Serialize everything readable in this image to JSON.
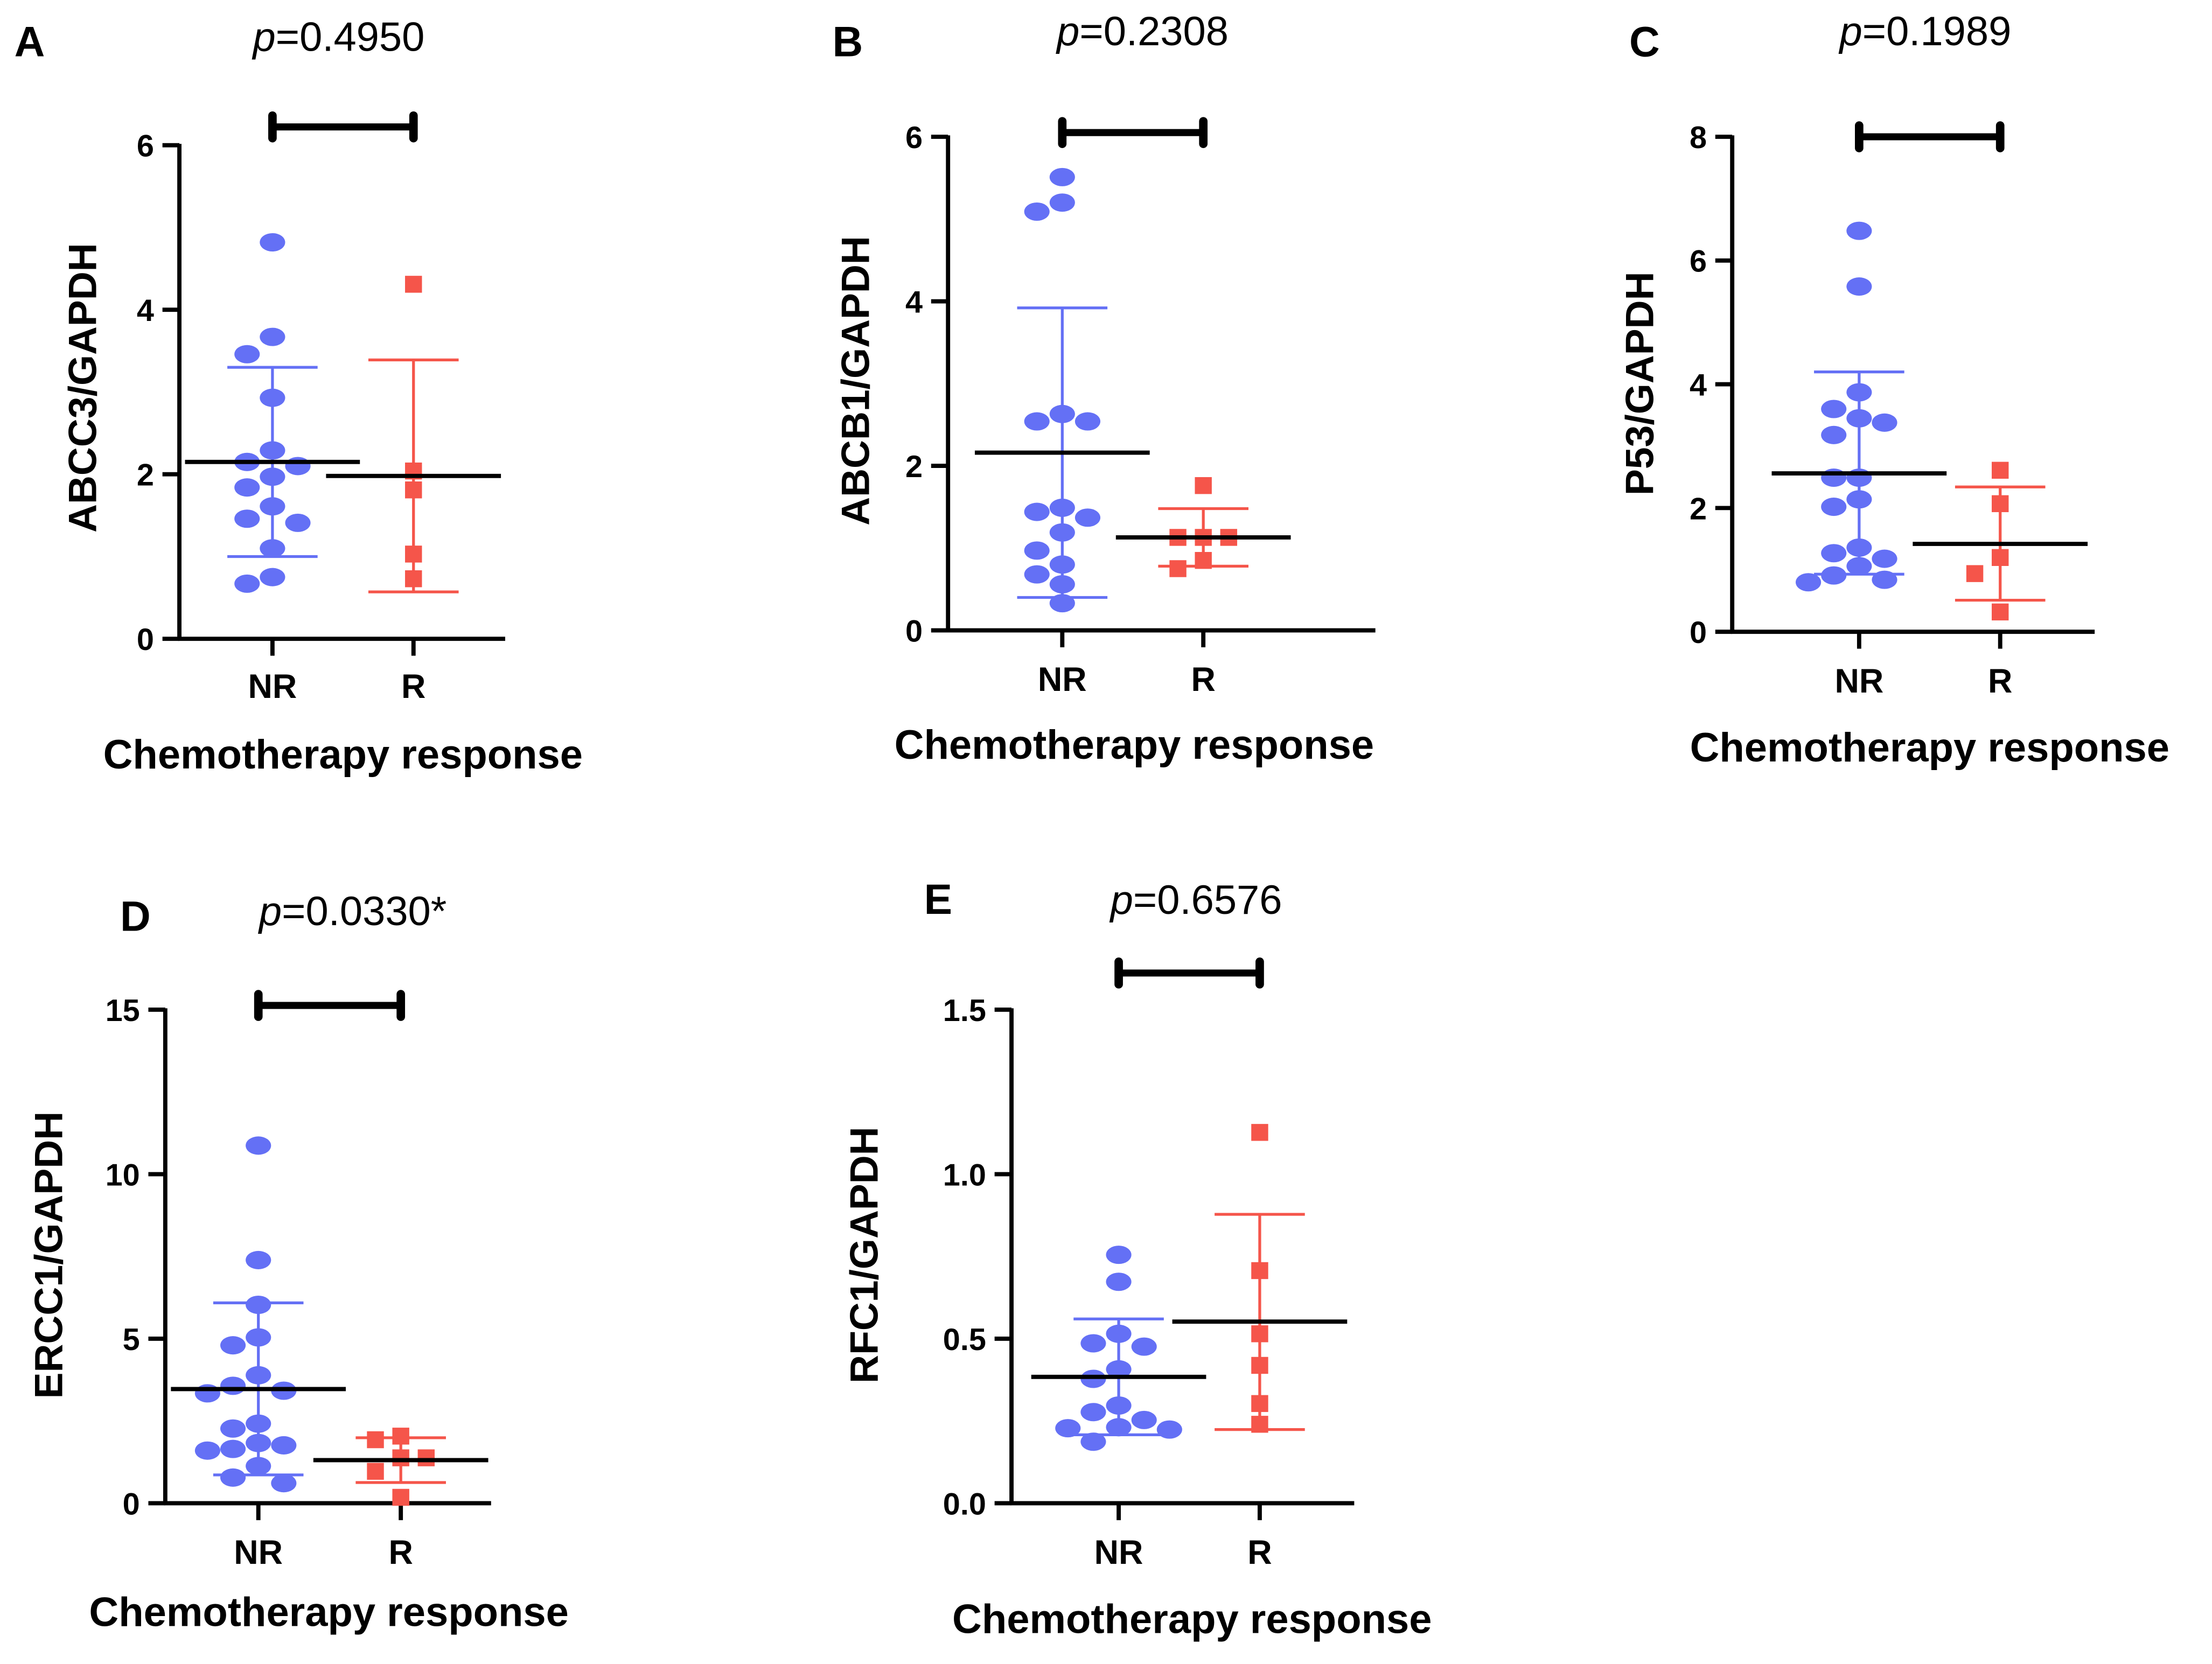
{
  "colors": {
    "NR": "#6470f5",
    "R": "#f5554a",
    "axis": "#000000"
  },
  "chart_data": [
    {
      "type": "scatter",
      "panel": "A",
      "annotation": {
        "prefix": "p",
        "text": "=0.4950"
      },
      "ylabel": "ABCC3/GAPDH",
      "xlabel": "Chemotherapy response",
      "categories": [
        "NR",
        "R"
      ],
      "ylim": [
        0,
        6
      ],
      "yticks": [
        "0",
        "2",
        "4",
        "6"
      ],
      "series": [
        {
          "name": "NR",
          "marker": "circle",
          "values": [
            4.82,
            3.67,
            3.46,
            2.93,
            2.29,
            2.15,
            2.1,
            1.97,
            1.84,
            1.61,
            1.46,
            1.41,
            1.1,
            0.75,
            0.67
          ],
          "mean": 2.15,
          "sd_upper": 3.3,
          "sd_lower": 1.0
        },
        {
          "name": "R",
          "marker": "square",
          "values": [
            4.31,
            2.04,
            1.81,
            1.03,
            0.73
          ],
          "mean": 1.98,
          "sd_upper": 3.39,
          "sd_lower": 0.57
        }
      ]
    },
    {
      "type": "scatter",
      "panel": "B",
      "annotation": {
        "prefix": "p",
        "text": "=0.2308"
      },
      "ylabel": "ABCB1/GAPDH",
      "xlabel": "Chemotherapy response",
      "categories": [
        "NR",
        "R"
      ],
      "ylim": [
        0,
        6
      ],
      "yticks": [
        "0",
        "2",
        "4",
        "6"
      ],
      "series": [
        {
          "name": "NR",
          "marker": "circle",
          "values": [
            5.51,
            5.2,
            5.09,
            2.63,
            2.54,
            2.54,
            1.49,
            1.44,
            1.37,
            1.19,
            0.97,
            0.8,
            0.68,
            0.56,
            0.33
          ],
          "mean": 2.16,
          "sd_upper": 3.92,
          "sd_lower": 0.4
        },
        {
          "name": "R",
          "marker": "square",
          "values": [
            1.76,
            1.13,
            1.13,
            1.13,
            0.85,
            0.75
          ],
          "mean": 1.13,
          "sd_upper": 1.48,
          "sd_lower": 0.78
        }
      ]
    },
    {
      "type": "scatter",
      "panel": "C",
      "annotation": {
        "prefix": "p",
        "text": "=0.1989"
      },
      "ylabel": "P53/GAPDH",
      "xlabel": "Chemotherapy response",
      "categories": [
        "NR",
        "R"
      ],
      "ylim": [
        0,
        8
      ],
      "yticks": [
        "0",
        "2",
        "4",
        "6",
        "8"
      ],
      "series": [
        {
          "name": "NR",
          "marker": "circle",
          "values": [
            6.48,
            5.58,
            3.87,
            3.6,
            3.45,
            3.38,
            3.18,
            2.49,
            2.49,
            2.14,
            2.02,
            1.36,
            1.27,
            1.18,
            1.06,
            0.91,
            0.84,
            0.8
          ],
          "mean": 2.56,
          "sd_upper": 4.2,
          "sd_lower": 0.93
        },
        {
          "name": "R",
          "marker": "square",
          "values": [
            2.61,
            2.07,
            1.2,
            0.94,
            0.32
          ],
          "mean": 1.42,
          "sd_upper": 2.34,
          "sd_lower": 0.51
        }
      ]
    },
    {
      "type": "scatter",
      "panel": "D",
      "annotation": {
        "prefix": "p",
        "text": "=0.0330*"
      },
      "ylabel": "ERCC1/GAPDH",
      "xlabel": "Chemotherapy response",
      "categories": [
        "NR",
        "R"
      ],
      "ylim": [
        0,
        15
      ],
      "yticks": [
        "0",
        "5",
        "10",
        "15"
      ],
      "series": [
        {
          "name": "NR",
          "marker": "circle",
          "values": [
            10.87,
            7.39,
            6.03,
            5.04,
            4.8,
            3.89,
            3.57,
            3.42,
            3.34,
            2.42,
            2.27,
            1.83,
            1.76,
            1.65,
            1.6,
            1.13,
            0.78,
            0.61
          ],
          "mean": 3.47,
          "sd_upper": 6.09,
          "sd_lower": 0.86
        },
        {
          "name": "R",
          "marker": "square",
          "values": [
            2.04,
            1.93,
            1.38,
            1.38,
            0.97,
            0.18
          ],
          "mean": 1.31,
          "sd_upper": 1.99,
          "sd_lower": 0.63
        }
      ]
    },
    {
      "type": "scatter",
      "panel": "E",
      "annotation": {
        "prefix": "p",
        "text": "=0.6576"
      },
      "ylabel": "RFC1/GAPDH",
      "xlabel": "Chemotherapy response",
      "categories": [
        "NR",
        "R"
      ],
      "ylim": [
        0,
        1.5
      ],
      "yticks": [
        "0.0",
        "0.5",
        "1.0",
        "1.5"
      ],
      "series": [
        {
          "name": "NR",
          "marker": "circle",
          "values": [
            0.755,
            0.673,
            0.515,
            0.486,
            0.476,
            0.407,
            0.378,
            0.297,
            0.277,
            0.253,
            0.231,
            0.228,
            0.224,
            0.187
          ],
          "mean": 0.384,
          "sd_upper": 0.56,
          "sd_lower": 0.208
        },
        {
          "name": "R",
          "marker": "square",
          "values": [
            1.127,
            0.707,
            0.515,
            0.419,
            0.303,
            0.24
          ],
          "mean": 0.552,
          "sd_upper": 0.878,
          "sd_lower": 0.224
        }
      ]
    }
  ]
}
